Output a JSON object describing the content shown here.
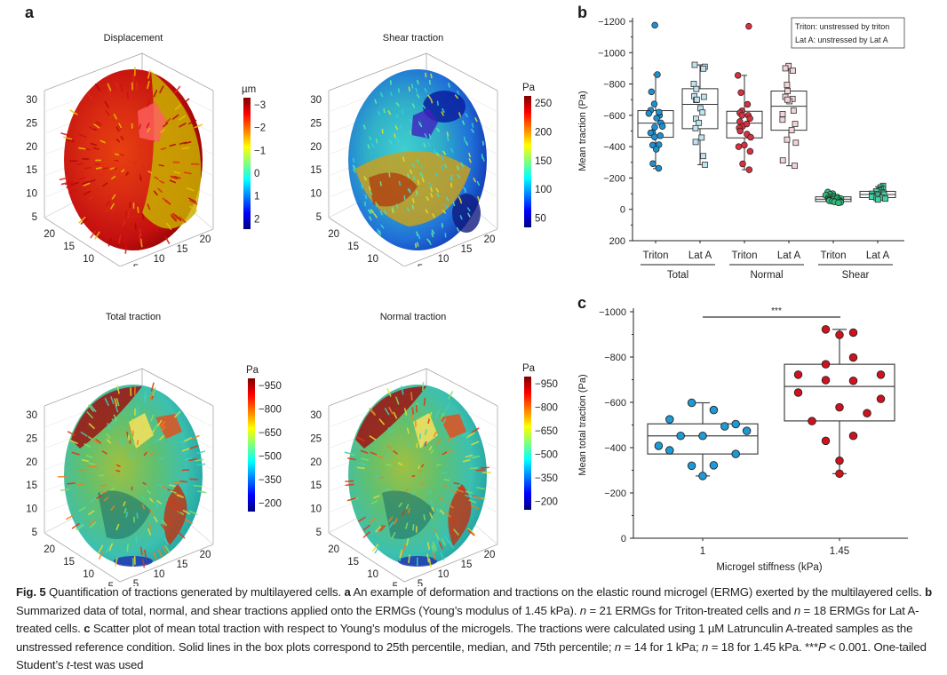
{
  "figure": {
    "panel_labels": {
      "a": "a",
      "b": "b",
      "c": "c"
    }
  },
  "panel_a": {
    "plots": [
      {
        "title": "Displacement",
        "colorbar_unit": "µm",
        "colorbar_ticks": [
          "−3",
          "−2",
          "−1",
          "0",
          "1",
          "2"
        ],
        "colormap": "jet",
        "z_ticks": [
          "30",
          "25",
          "20",
          "15",
          "10",
          "5"
        ],
        "y_ticks": [
          "20",
          "15",
          "10",
          "5"
        ],
        "x_ticks": [
          "5",
          "10",
          "15",
          "20"
        ]
      },
      {
        "title": "Shear traction",
        "colorbar_unit": "Pa",
        "colorbar_ticks": [
          "250",
          "200",
          "150",
          "100",
          "50"
        ],
        "colormap": "jet",
        "z_ticks": [
          "30",
          "25",
          "20",
          "15",
          "10",
          "5"
        ],
        "y_ticks": [
          "20",
          "15",
          "10",
          "5"
        ],
        "x_ticks": [
          "5",
          "10",
          "15",
          "20"
        ]
      },
      {
        "title": "Total traction",
        "colorbar_unit": "Pa",
        "colorbar_ticks": [
          "−950",
          "−800",
          "−650",
          "−500",
          "−350",
          "−200"
        ],
        "colormap": "jet",
        "z_ticks": [
          "30",
          "25",
          "20",
          "15",
          "10",
          "5"
        ],
        "y_ticks": [
          "20",
          "15",
          "10",
          "5"
        ],
        "x_ticks": [
          "5",
          "10",
          "15",
          "20"
        ]
      },
      {
        "title": "Normal traction",
        "colorbar_unit": "Pa",
        "colorbar_ticks": [
          "−950",
          "−800",
          "−650",
          "−500",
          "−350",
          "−200"
        ],
        "colormap": "jet",
        "z_ticks": [
          "30",
          "25",
          "20",
          "15",
          "10",
          "5"
        ],
        "y_ticks": [
          "20",
          "15",
          "10",
          "5"
        ],
        "x_ticks": [
          "5",
          "10",
          "15",
          "20"
        ]
      }
    ]
  },
  "chart_data": [
    {
      "id": "b",
      "type": "box",
      "ylabel": "Mean traction (Pa)",
      "ylim": [
        -1200,
        200
      ],
      "y_inverted": true,
      "yticks": [
        -1200,
        -1000,
        -800,
        -600,
        -400,
        -200,
        0,
        200
      ],
      "ytick_labels": [
        "−1200",
        "−1000",
        "−800",
        "−600",
        "−400",
        "−200",
        "0",
        "200"
      ],
      "legend": [
        "Triton: unstressed by triton",
        "Lat A: unstressed by Lat A"
      ],
      "legend_position": "top-right",
      "categories": [
        "Triton",
        "Lat A",
        "Triton",
        "Lat A",
        "Triton",
        "Lat A"
      ],
      "groups": [
        {
          "label": "Total",
          "span": [
            0,
            1
          ]
        },
        {
          "label": "Normal",
          "span": [
            2,
            3
          ]
        },
        {
          "label": "Shear",
          "span": [
            4,
            5
          ]
        }
      ],
      "series": [
        {
          "name": "Total Triton",
          "marker": "circle",
          "color": "#1e8fcf",
          "q1": -460,
          "median": -550,
          "q3": -630,
          "whisker_low": -260,
          "whisker_high": -860,
          "values": [
            -1175,
            -860,
            -750,
            -672,
            -632,
            -612,
            -600,
            -582,
            -552,
            -530,
            -490,
            -488,
            -462,
            -412,
            -410,
            -384,
            -292,
            -262,
            -620,
            -525,
            -470
          ]
        },
        {
          "name": "Total Lat A",
          "marker": "square",
          "color": "#bfe3ef",
          "q1": -515,
          "median": -670,
          "q3": -770,
          "whisker_low": -285,
          "whisker_high": -922,
          "values": [
            -922,
            -910,
            -898,
            -800,
            -768,
            -722,
            -718,
            -698,
            -645,
            -618,
            -578,
            -552,
            -518,
            -458,
            -430,
            -340,
            -285,
            -700
          ]
        },
        {
          "name": "Normal Triton",
          "marker": "circle",
          "color": "#d8303f",
          "q1": -456,
          "median": -550,
          "q3": -626,
          "whisker_low": -253,
          "whisker_high": -855,
          "values": [
            -1168,
            -855,
            -745,
            -670,
            -628,
            -615,
            -600,
            -580,
            -560,
            -530,
            -520,
            -480,
            -460,
            -410,
            -400,
            -370,
            -290,
            -253,
            -545,
            -500,
            -600
          ]
        },
        {
          "name": "Normal Lat A",
          "marker": "square",
          "color": "#f2d3d8",
          "q1": -505,
          "median": -658,
          "q3": -755,
          "whisker_low": -278,
          "whisker_high": -915,
          "values": [
            -915,
            -900,
            -885,
            -795,
            -755,
            -718,
            -705,
            -690,
            -630,
            -608,
            -572,
            -545,
            -505,
            -445,
            -425,
            -312,
            -278,
            -700
          ]
        },
        {
          "name": "Shear Triton",
          "marker": "circle",
          "color": "#2dbd7a",
          "q1": -50,
          "median": -65,
          "q3": -80,
          "whisker_low": -40,
          "whisker_high": -95,
          "values": [
            -110,
            -100,
            -95,
            -90,
            -85,
            -80,
            -78,
            -75,
            -72,
            -70,
            -68,
            -65,
            -62,
            -60,
            -58,
            -55,
            -52,
            -50,
            -48,
            -45,
            -42
          ]
        },
        {
          "name": "Shear Lat A",
          "marker": "square",
          "color": "#3fd3a5",
          "q1": -75,
          "median": -95,
          "q3": -115,
          "whisker_low": -60,
          "whisker_high": -145,
          "values": [
            -150,
            -140,
            -130,
            -125,
            -120,
            -115,
            -110,
            -105,
            -100,
            -98,
            -95,
            -90,
            -85,
            -80,
            -75,
            -72,
            -68,
            -62
          ]
        }
      ]
    },
    {
      "id": "c",
      "type": "scatter",
      "xlabel": "Microgel stiffness (kPa)",
      "ylabel": "Mean total traction (Pa)",
      "ylim": [
        -1000,
        0
      ],
      "y_inverted": true,
      "yticks": [
        -1000,
        -800,
        -600,
        -400,
        -200,
        0
      ],
      "ytick_labels": [
        "−1000",
        "−800",
        "−600",
        "−400",
        "−200",
        "0"
      ],
      "categories": [
        "1",
        "1.45"
      ],
      "significance": {
        "label": "***",
        "between": [
          "1",
          "1.45"
        ]
      },
      "series": [
        {
          "name": "1 kPa",
          "color": "#1e9ad6",
          "q1": -372,
          "median": -452,
          "q3": -505,
          "whisker_low": -275,
          "whisker_high": -598,
          "points": [
            {
              "dx": -0.32,
              "y": -408
            },
            {
              "dx": -0.24,
              "y": -525
            },
            {
              "dx": -0.24,
              "y": -388
            },
            {
              "dx": -0.16,
              "y": -452
            },
            {
              "dx": -0.08,
              "y": -598
            },
            {
              "dx": -0.08,
              "y": -320
            },
            {
              "dx": 0.0,
              "y": -452
            },
            {
              "dx": 0.0,
              "y": -275
            },
            {
              "dx": 0.08,
              "y": -566
            },
            {
              "dx": 0.08,
              "y": -322
            },
            {
              "dx": 0.16,
              "y": -494
            },
            {
              "dx": 0.24,
              "y": -504
            },
            {
              "dx": 0.24,
              "y": -372
            },
            {
              "dx": 0.32,
              "y": -474
            }
          ]
        },
        {
          "name": "1.45 kPa",
          "color": "#d0121c",
          "q1": -518,
          "median": -670,
          "q3": -768,
          "whisker_low": -285,
          "whisker_high": -922,
          "points": [
            {
              "dx": -0.3,
              "y": -722
            },
            {
              "dx": -0.3,
              "y": -643
            },
            {
              "dx": -0.2,
              "y": -517
            },
            {
              "dx": -0.1,
              "y": -922
            },
            {
              "dx": -0.1,
              "y": -768
            },
            {
              "dx": -0.1,
              "y": -698
            },
            {
              "dx": -0.1,
              "y": -430
            },
            {
              "dx": 0.0,
              "y": -898
            },
            {
              "dx": 0.0,
              "y": -578
            },
            {
              "dx": 0.0,
              "y": -342
            },
            {
              "dx": 0.0,
              "y": -285
            },
            {
              "dx": 0.1,
              "y": -908
            },
            {
              "dx": 0.1,
              "y": -798
            },
            {
              "dx": 0.1,
              "y": -695
            },
            {
              "dx": 0.1,
              "y": -452
            },
            {
              "dx": 0.2,
              "y": -552
            },
            {
              "dx": 0.3,
              "y": -722
            },
            {
              "dx": 0.3,
              "y": -615
            }
          ]
        }
      ]
    }
  ],
  "caption": {
    "fig_label": "Fig. 5",
    "title": " Quantification of tractions generated by multilayered cells. ",
    "a_label": "a",
    "a_text": " An example of deformation and tractions on the elastic round microgel (ERMG) exerted by the multilayered cells. ",
    "b_label": "b",
    "b_text": " Summarized data of total, normal, and shear tractions applied onto the ERMGs (Young’s modulus of 1.45 kPa). ",
    "n1_var": "n",
    "n1_text": " = 21 ERMGs for Triton-treated cells and ",
    "n2_var": "n",
    "n2_text": " = 18 ERMGs for Lat A-treated cells. ",
    "c_label": "c",
    "c_text": " Scatter plot of mean total traction with respect to Young’s modulus of the microgels. The tractions were calculated using 1 µM Latrunculin A-treated samples as the unstressed reference condition. Solid lines in the box plots correspond to 25th percentile, median, and 75th percentile; ",
    "n3_var": "n",
    "n3_text": " = 14 for 1 kPa; ",
    "n4_var": "n",
    "n4_text": " = 18 for 1.45 kPa. ***",
    "p_var": "P",
    "p_text": " < 0.001. One-tailed Student’s ",
    "t_var": "t",
    "t_text": "-test was used"
  }
}
